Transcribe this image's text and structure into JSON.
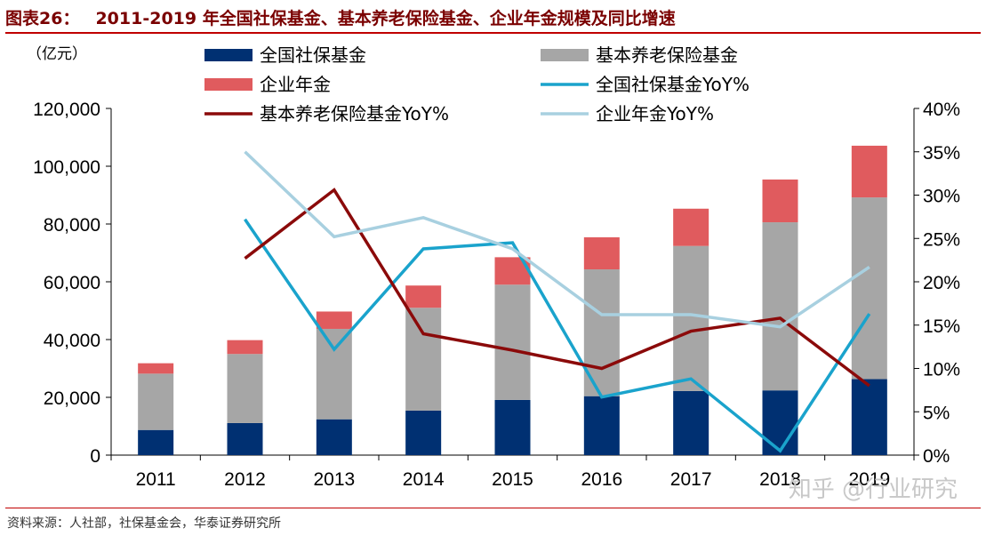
{
  "header": {
    "figure_no": "图表26：",
    "title": "2011-2019 年全国社保基金、基本养老保险基金、企业年金规模及同比增速"
  },
  "footer": {
    "source": "资料来源：人社部，社保基金会，华泰证券研究所",
    "watermark": "知乎 @行业研究"
  },
  "chart_data": {
    "type": "bar",
    "stacked": true,
    "categories": [
      "2011",
      "2012",
      "2013",
      "2014",
      "2015",
      "2016",
      "2017",
      "2018",
      "2019"
    ],
    "yunit": "（亿元）",
    "ylim": [
      0,
      120000
    ],
    "yticks": [
      0,
      20000,
      40000,
      60000,
      80000,
      100000,
      120000
    ],
    "ytick_labels": [
      "0",
      "20,000",
      "40,000",
      "60,000",
      "80,000",
      "100,000",
      "120,000"
    ],
    "y2lim": [
      0,
      40
    ],
    "y2ticks": [
      0,
      5,
      10,
      15,
      20,
      25,
      30,
      35,
      40
    ],
    "y2tick_labels": [
      "0%",
      "5%",
      "10%",
      "15%",
      "20%",
      "25%",
      "30%",
      "35%",
      "40%"
    ],
    "series": [
      {
        "name": "全国社保基金",
        "kind": "bar",
        "color": "#003072",
        "values": [
          8700,
          11100,
          12400,
          15400,
          19100,
          20400,
          22200,
          22400,
          26300
        ]
      },
      {
        "name": "基本养老保险基金",
        "kind": "bar",
        "color": "#a6a6a6",
        "values": [
          19500,
          23900,
          31300,
          35600,
          39900,
          43900,
          50200,
          58200,
          62900
        ]
      },
      {
        "name": "企业年金",
        "kind": "bar",
        "color": "#e05b5e",
        "values": [
          3600,
          4800,
          6000,
          7700,
          9500,
          11100,
          12900,
          14800,
          17900
        ]
      },
      {
        "name": "全国社保基金YoY%",
        "kind": "line",
        "axis": "right",
        "color": "#1aa3cc",
        "values": [
          null,
          27.2,
          12.2,
          23.8,
          24.5,
          6.7,
          8.8,
          0.5,
          16.3
        ]
      },
      {
        "name": "基本养老保险基金YoY%",
        "kind": "line",
        "axis": "right",
        "color": "#8b0a0a",
        "values": [
          null,
          22.7,
          30.6,
          14.0,
          12.1,
          10.0,
          14.3,
          15.8,
          8.0
        ]
      },
      {
        "name": "企业年金YoY%",
        "kind": "line",
        "axis": "right",
        "color": "#a8d0e0",
        "values": [
          null,
          35.0,
          25.2,
          27.4,
          23.8,
          16.2,
          16.2,
          14.8,
          21.7
        ]
      }
    ],
    "legend_order": [
      0,
      1,
      2,
      3,
      4,
      5
    ],
    "legend_position": "top",
    "grid": false
  }
}
